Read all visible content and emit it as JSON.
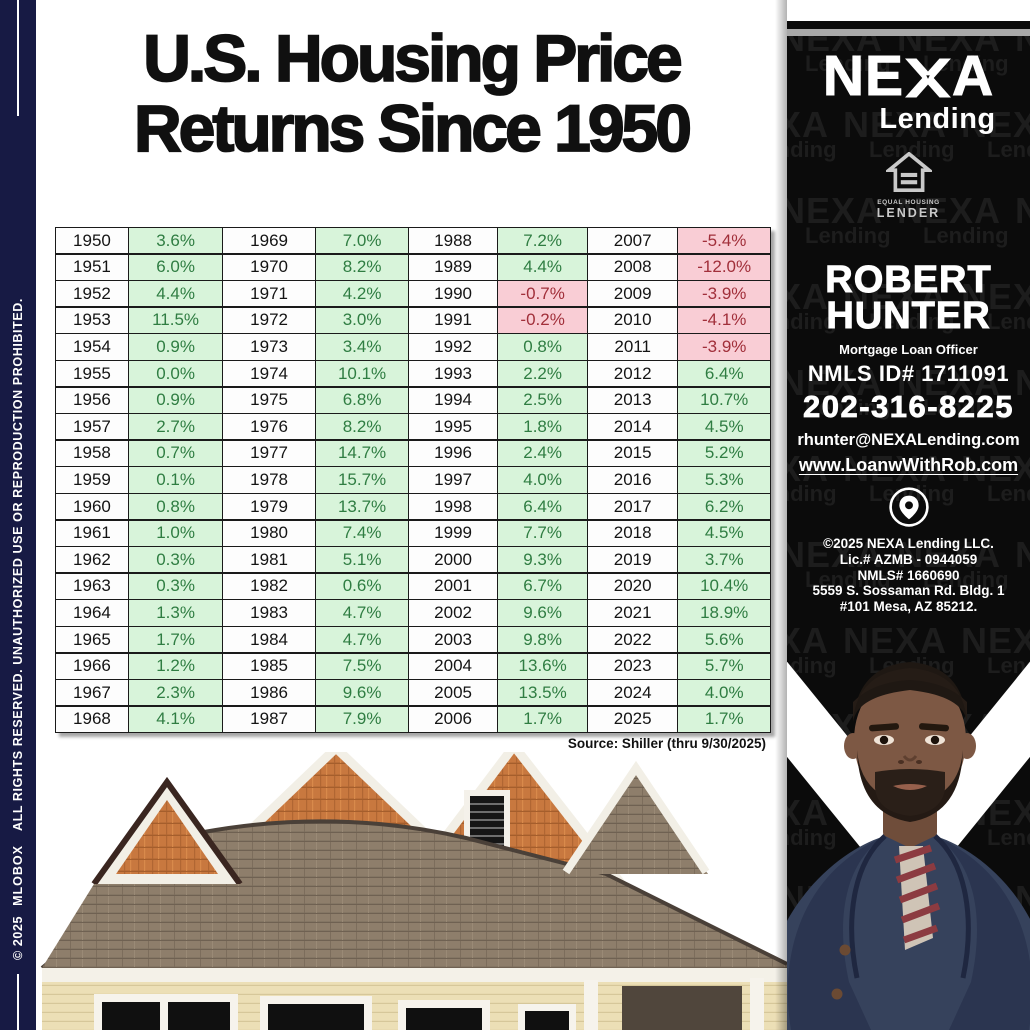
{
  "header": {
    "title_line1": "U.S. Housing Price",
    "title_line2": "Returns Since 1950"
  },
  "chart_data": {
    "type": "table",
    "title": "U.S. Housing Price Returns Since 1950",
    "unit": "%",
    "source": "Source: Shiller (thru 9/30/2025)",
    "layout_columns": 4,
    "rows_per_column": 19,
    "years": [
      1950,
      1951,
      1952,
      1953,
      1954,
      1955,
      1956,
      1957,
      1958,
      1959,
      1960,
      1961,
      1962,
      1963,
      1964,
      1965,
      1966,
      1967,
      1968,
      1969,
      1970,
      1971,
      1972,
      1973,
      1974,
      1975,
      1976,
      1977,
      1978,
      1979,
      1980,
      1981,
      1982,
      1983,
      1984,
      1985,
      1986,
      1987,
      1988,
      1989,
      1990,
      1991,
      1992,
      1993,
      1994,
      1995,
      1996,
      1997,
      1998,
      1999,
      2000,
      2001,
      2002,
      2003,
      2004,
      2005,
      2006,
      2007,
      2008,
      2009,
      2010,
      2011,
      2012,
      2013,
      2014,
      2015,
      2016,
      2017,
      2018,
      2019,
      2020,
      2021,
      2022,
      2023,
      2024,
      2025
    ],
    "values": [
      3.6,
      6.0,
      4.4,
      11.5,
      0.9,
      0.0,
      0.9,
      2.7,
      0.7,
      0.1,
      0.8,
      1.0,
      0.3,
      0.3,
      1.3,
      1.7,
      1.2,
      2.3,
      4.1,
      7.0,
      8.2,
      4.2,
      3.0,
      3.4,
      10.1,
      6.8,
      8.2,
      14.7,
      15.7,
      13.7,
      7.4,
      5.1,
      0.6,
      4.7,
      4.7,
      7.5,
      9.6,
      7.9,
      7.2,
      4.4,
      -0.7,
      -0.2,
      0.8,
      2.2,
      2.5,
      1.8,
      2.4,
      4.0,
      6.4,
      7.7,
      9.3,
      6.7,
      9.6,
      9.8,
      13.6,
      13.5,
      1.7,
      -5.4,
      -12.0,
      -3.9,
      -4.1,
      -3.9,
      6.4,
      10.7,
      4.5,
      5.2,
      5.3,
      6.2,
      4.5,
      3.7,
      10.4,
      18.9,
      5.6,
      5.7,
      4.0,
      1.7
    ],
    "positive_bg": "#d8f4da",
    "negative_bg": "#f9cdd5",
    "positive_text": "#2f7d42",
    "negative_text": "#a12f3a"
  },
  "left_strip": {
    "copyright_prefix": "© 2025",
    "brand": "MLOBOX",
    "rights_text": "ALL RIGHTS RESERVED. UNAUTHORIZED USE OR REPRODUCTION PROHIBITED."
  },
  "sidebar": {
    "brand": "NEXA",
    "brand_sub": "Lending",
    "equal_housing_line1": "EQUAL HOUSING",
    "equal_housing_line2": "LENDER",
    "name_line1": "ROBERT",
    "name_line2": "HUNTER",
    "role": "Mortgage Loan Officer",
    "nmls_id": "NMLS ID# 1711091",
    "phone": "202-316-8225",
    "email": "rhunter@NEXALending.com",
    "website": "www.LoanwWithRob.com",
    "company_line1": "©2025 NEXA Lending LLC.",
    "company_line2": "Lic.# AZMB - 0944059",
    "company_line3": "NMLS# 1660690",
    "company_line4": "5559 S. Sossaman Rd. Bldg. 1",
    "company_line5": "#101 Mesa, AZ 85212.",
    "watermark_word1": "NEXA",
    "watermark_word2": "Lending"
  },
  "colors": {
    "navy_strip": "#171a44",
    "panel_black": "#0b0b0b",
    "roof_taupe": "#8e7e6b",
    "gable_orange": "#c8783f",
    "siding_cream": "#ecdfb6"
  }
}
